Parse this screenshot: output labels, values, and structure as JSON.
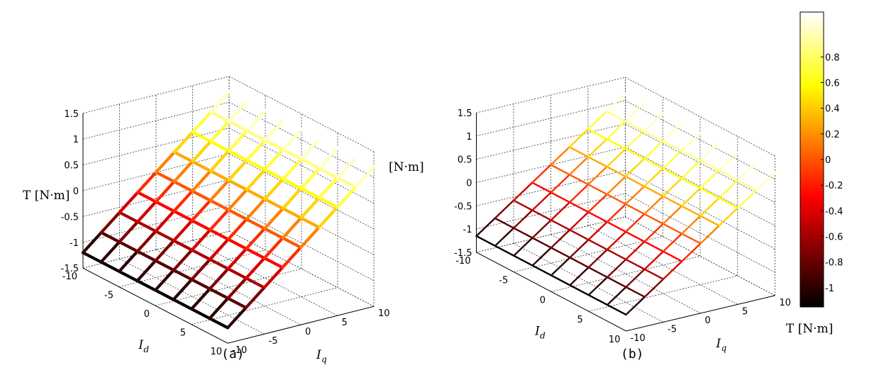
{
  "chart_data": [
    {
      "type": "surface",
      "panel_caption": "(a)",
      "zlabel": "T [N·m]",
      "side_label": "[N·m]",
      "xlabel_main": "I",
      "xlabel_sub": "d",
      "ylabel_main": "I",
      "ylabel_sub": "q",
      "xlim": [
        -10,
        10
      ],
      "ylim": [
        -10,
        10
      ],
      "zlim": [
        -1.5,
        1.5
      ],
      "x_ticks": [
        "-10",
        "-5",
        "0",
        "5",
        "10"
      ],
      "y_ticks": [
        "-10",
        "-5",
        "0",
        "5",
        "10"
      ],
      "z_ticks": [
        "-1.5",
        "-1",
        "-0.5",
        "0",
        "0.5",
        "1",
        "1.5"
      ],
      "grid": true,
      "mesh_x": [
        -10,
        -7.5,
        -5,
        -2.5,
        0,
        2.5,
        5,
        7.5,
        10
      ],
      "mesh_y": [
        -10,
        -7.5,
        -5,
        -2.5,
        0,
        2.5,
        5,
        7.5,
        10
      ],
      "z_min": -1.2,
      "z_max": 1.2,
      "note_values": "T varies linearly with Iq; corners: T(Iq=-10)=-1.2, T(Iq=10)=1.2"
    },
    {
      "type": "surface",
      "panel_caption": "(b)",
      "xlabel_main": "I",
      "xlabel_sub": "d",
      "ylabel_main": "I",
      "ylabel_sub": "q",
      "xlim": [
        -10,
        10
      ],
      "ylim": [
        -10,
        10
      ],
      "zlim": [
        -1.5,
        1.5
      ],
      "x_ticks": [
        "-10",
        "-5",
        "0",
        "5",
        "10"
      ],
      "y_ticks": [
        "-10",
        "-5",
        "0",
        "5",
        "10"
      ],
      "z_ticks": [
        "-1.5",
        "-1",
        "-0.5",
        "0",
        "0.5",
        "1",
        "1.5"
      ],
      "grid": true,
      "mesh_x": [
        -10,
        -7.5,
        -5,
        -2.5,
        0,
        2.5,
        5,
        7.5,
        10
      ],
      "mesh_y": [
        -10,
        -7.5,
        -5,
        -2.5,
        0,
        2.5,
        5,
        7.5,
        10
      ],
      "z_min": -1.15,
      "z_max": 1.15
    }
  ],
  "colorbar": {
    "label": "T [N·m]",
    "ticks": [
      "0.8",
      "0.6",
      "0.4",
      "0.2",
      "0",
      "-0.2",
      "-0.4",
      "-0.6",
      "-0.8",
      "-1"
    ],
    "tick_values": [
      0.8,
      0.6,
      0.4,
      0.2,
      0,
      -0.2,
      -0.4,
      -0.6,
      -0.8,
      -1
    ],
    "range": [
      -1.15,
      1.15
    ],
    "colormap": "hot"
  }
}
